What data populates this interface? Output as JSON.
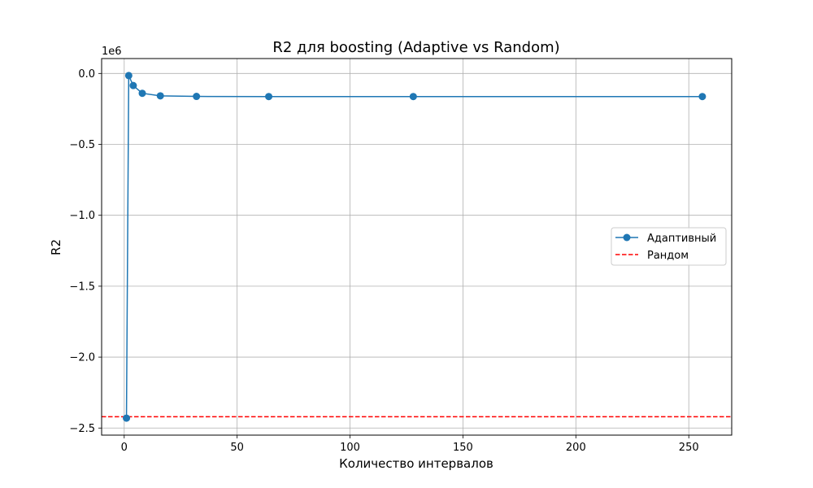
{
  "chart_data": {
    "type": "line",
    "title": "R2 для boosting (Adaptive vs Random)",
    "xlabel": "Количество интервалов",
    "ylabel": "R2",
    "y_offset_label": "1e6",
    "xlim": [
      -10,
      269
    ],
    "ylim": [
      -2.55,
      0.105
    ],
    "x_ticks": [
      0,
      50,
      100,
      150,
      200,
      250
    ],
    "x_tick_labels": [
      "0",
      "50",
      "100",
      "150",
      "200",
      "250"
    ],
    "y_ticks": [
      0.0,
      -0.5,
      -1.0,
      -1.5,
      -2.0,
      -2.5
    ],
    "y_tick_labels": [
      "0.0",
      "−0.5",
      "−1.0",
      "−1.5",
      "−2.0",
      "−2.5"
    ],
    "grid": true,
    "legend_position": "center-right",
    "series": [
      {
        "name": "Адаптивный",
        "color": "#1f77b4",
        "style": "solid-line-with-circle-markers",
        "x": [
          1,
          2,
          4,
          8,
          16,
          32,
          64,
          128,
          256
        ],
        "y": [
          -2.43,
          -0.015,
          -0.085,
          -0.14,
          -0.158,
          -0.162,
          -0.163,
          -0.163,
          -0.163
        ]
      },
      {
        "name": "Рандом",
        "color": "#ff0000",
        "style": "dashed-horizontal-line",
        "y": -2.42
      }
    ]
  }
}
